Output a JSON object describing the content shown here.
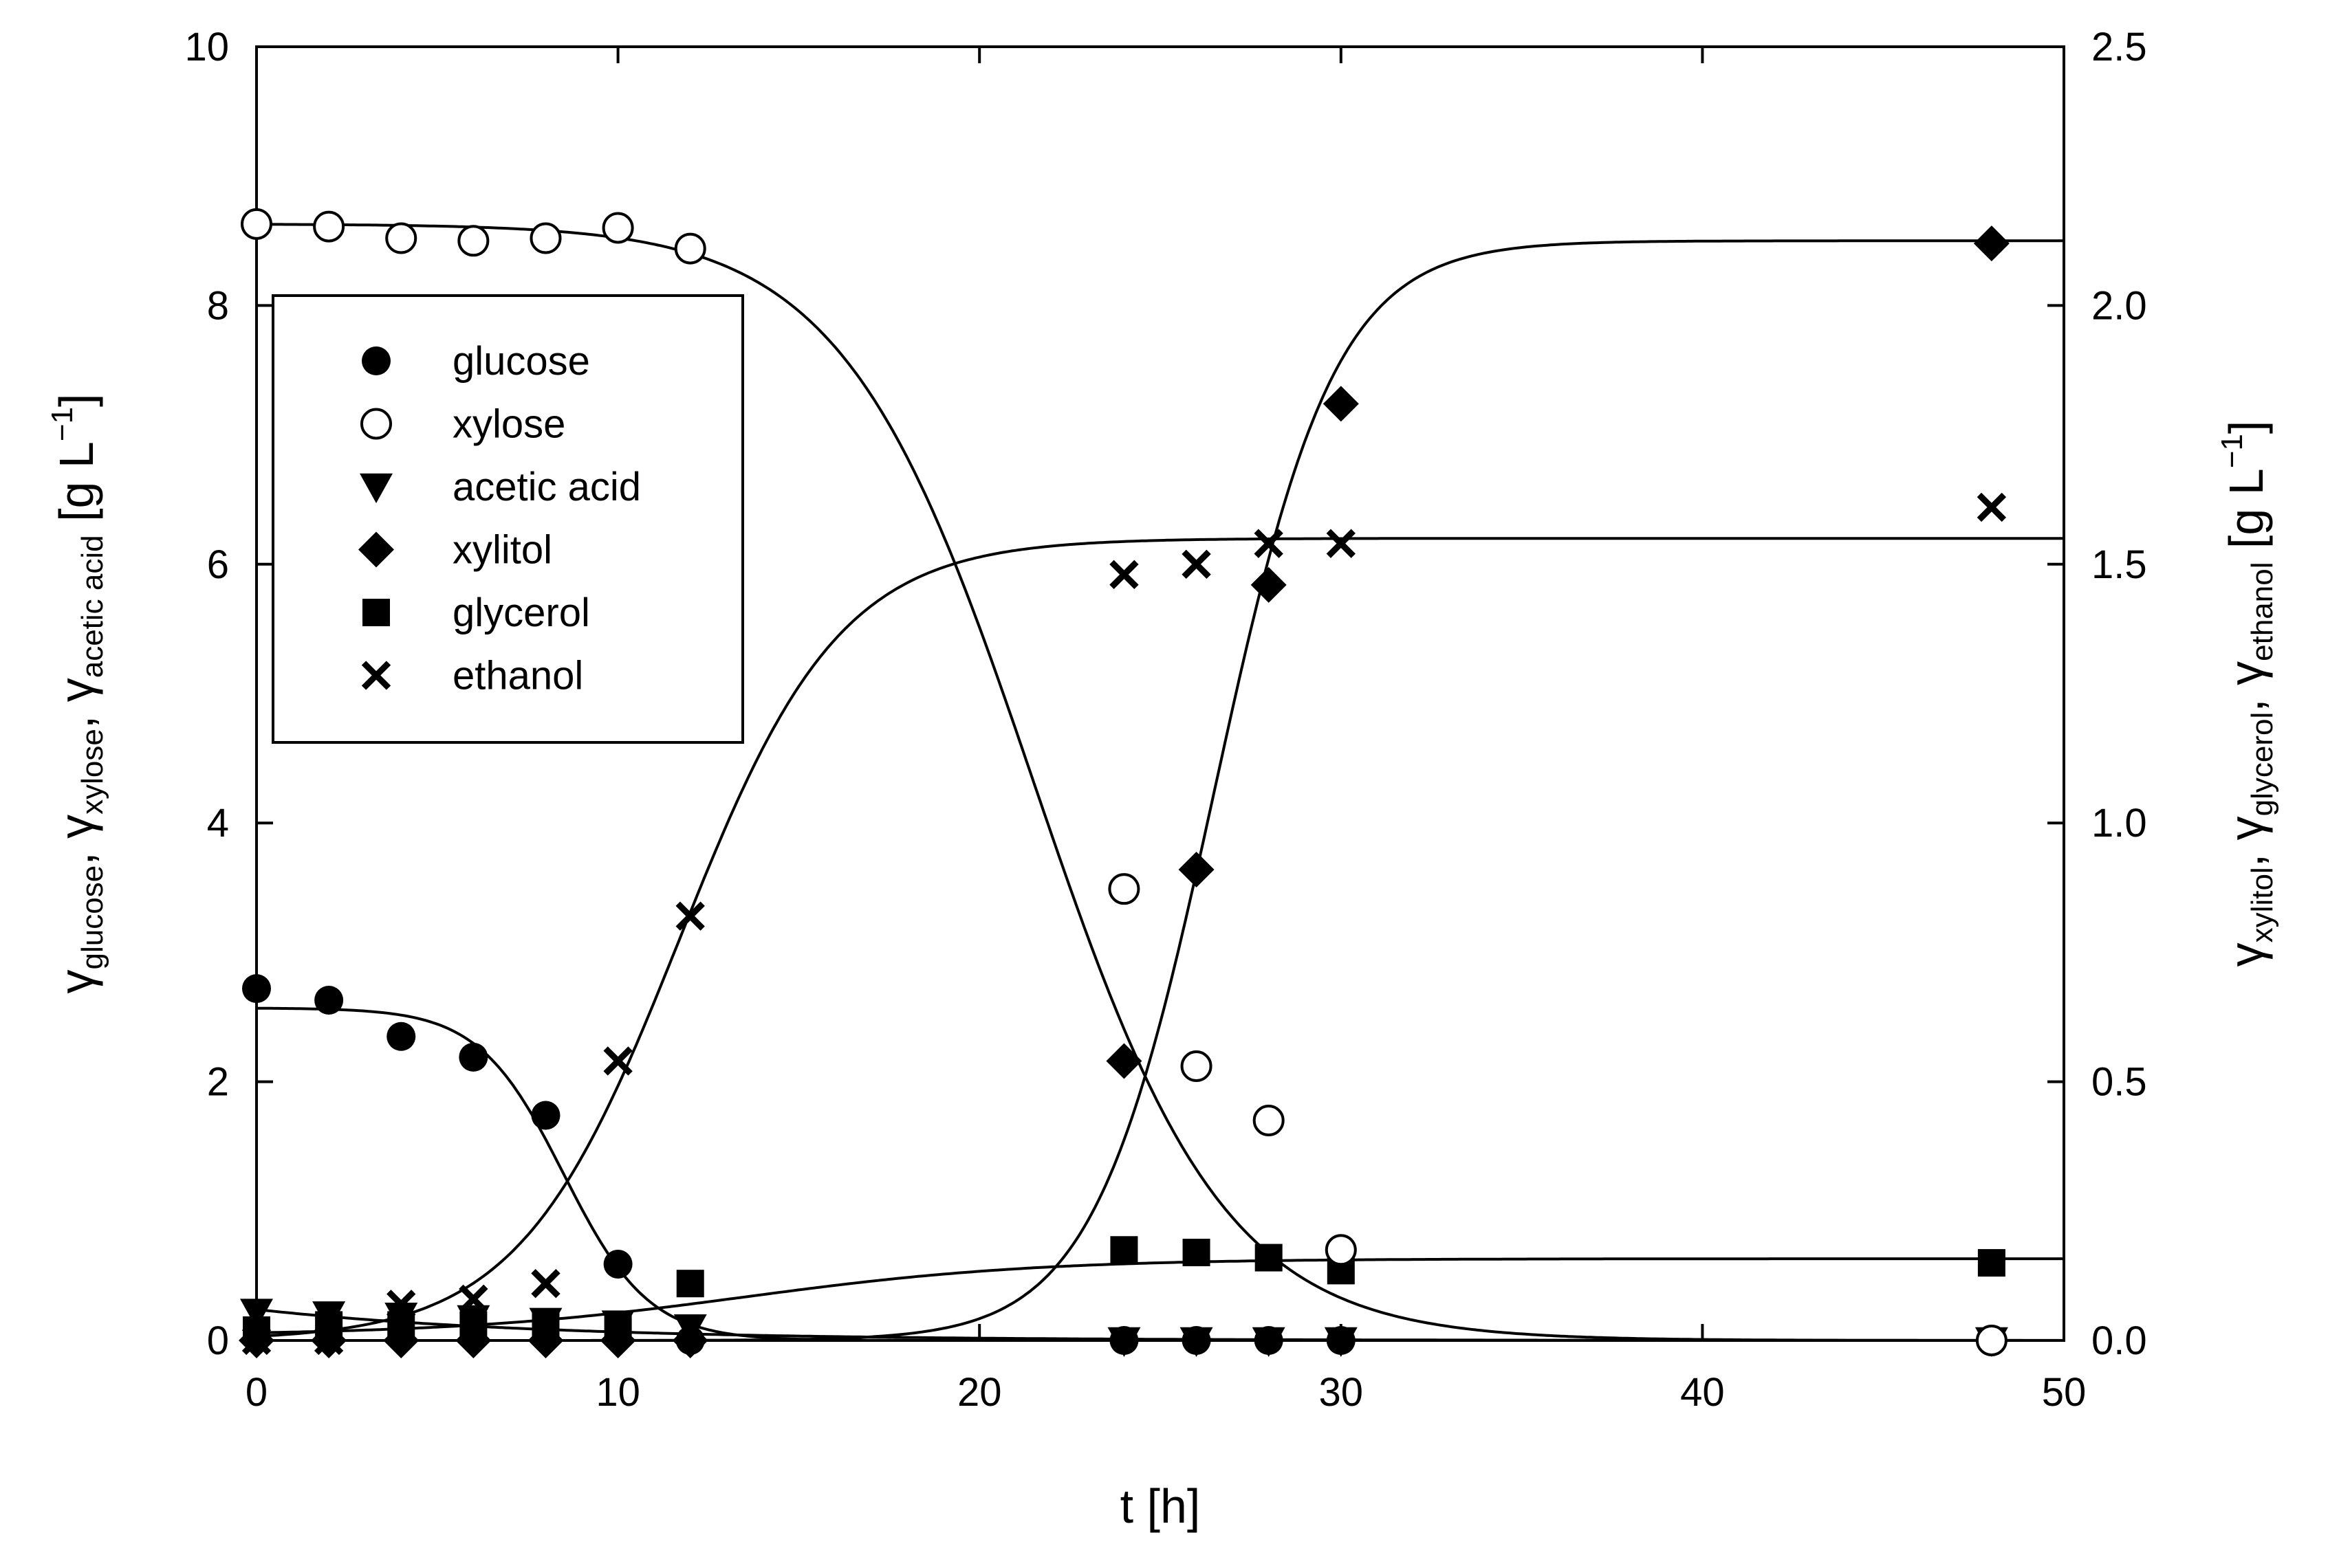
{
  "chart_data": {
    "type": "scatter",
    "xlabel": "t [h]",
    "ylabel_left": {
      "symbol": "γ",
      "subs": [
        "glucose",
        "xylose",
        "acetic acid"
      ],
      "unit": "[g L",
      "exp": "−1",
      "close": "]"
    },
    "ylabel_right": {
      "symbol": "γ",
      "subs": [
        "xylitol",
        "glycerol",
        "ethanol"
      ],
      "unit": "[g L",
      "exp": "−1",
      "close": "]"
    },
    "xlim": [
      0,
      50
    ],
    "ylim_left": [
      0,
      10
    ],
    "ylim_right": [
      0,
      2.5
    ],
    "x_ticks": [
      "0",
      "10",
      "20",
      "30",
      "40",
      "50"
    ],
    "y_left_ticks": [
      "0",
      "2",
      "4",
      "6",
      "8",
      "10"
    ],
    "y_right_ticks": [
      "0.0",
      "0.5",
      "1.0",
      "1.5",
      "2.0",
      "2.5"
    ],
    "grid": false,
    "legend_position": "top-left",
    "series": [
      {
        "name": "glucose",
        "marker": "filled-circle",
        "axis": "left",
        "x": [
          0,
          2,
          4,
          6,
          8,
          10,
          12,
          24,
          26,
          28,
          30,
          48
        ],
        "y": [
          2.72,
          2.63,
          2.35,
          2.19,
          1.74,
          0.59,
          0.0,
          0.0,
          0.0,
          0.0,
          0.0,
          0.0
        ]
      },
      {
        "name": "xylose",
        "marker": "open-circle",
        "axis": "left",
        "x": [
          0,
          2,
          4,
          6,
          8,
          10,
          12,
          24,
          26,
          28,
          30,
          48
        ],
        "y": [
          8.63,
          8.61,
          8.52,
          8.5,
          8.52,
          8.6,
          8.44,
          3.49,
          2.12,
          1.7,
          0.7,
          0.0
        ]
      },
      {
        "name": "acetic acid",
        "marker": "filled-triangle-down",
        "axis": "left",
        "x": [
          0,
          2,
          4,
          6,
          8,
          10,
          12,
          24,
          26,
          28,
          30,
          48
        ],
        "y": [
          0.22,
          0.2,
          0.19,
          0.17,
          0.15,
          0.13,
          0.1,
          0.0,
          0.0,
          0.0,
          0.0,
          0.0
        ]
      },
      {
        "name": "xylitol",
        "marker": "filled-diamond",
        "axis": "right",
        "x": [
          0,
          2,
          4,
          6,
          8,
          10,
          12,
          24,
          26,
          28,
          30,
          48
        ],
        "y": [
          0.0,
          0.0,
          0.0,
          0.0,
          0.0,
          0.0,
          0.0,
          0.54,
          0.91,
          1.46,
          1.81,
          2.12
        ]
      },
      {
        "name": "glycerol",
        "marker": "filled-square",
        "axis": "right",
        "x": [
          0,
          2,
          4,
          6,
          8,
          10,
          12,
          24,
          26,
          28,
          30,
          48
        ],
        "y": [
          0.02,
          0.03,
          0.03,
          0.03,
          0.03,
          0.03,
          0.11,
          0.175,
          0.17,
          0.16,
          0.135,
          0.15
        ]
      },
      {
        "name": "ethanol",
        "marker": "x-cross",
        "axis": "right",
        "x": [
          0,
          2,
          4,
          6,
          8,
          10,
          12,
          24,
          26,
          28,
          30,
          48
        ],
        "y": [
          0.0,
          0.0,
          0.07,
          0.08,
          0.11,
          0.54,
          0.82,
          1.48,
          1.5,
          1.54,
          1.54,
          1.61
        ]
      }
    ],
    "fit_curves": [
      {
        "name": "glucose-fit",
        "axis": "left",
        "type": "decay",
        "y0": 2.57,
        "t50": 8.5,
        "k": 0.85
      },
      {
        "name": "xylose-fit",
        "axis": "left",
        "type": "decay",
        "y0": 8.63,
        "t50": 21.5,
        "k": 0.38
      },
      {
        "name": "acetic-acid-fit",
        "axis": "left",
        "type": "exp-decay",
        "y0": 0.24,
        "rate": 0.13
      },
      {
        "name": "xylitol-fit",
        "axis": "right",
        "type": "growth",
        "ymax": 2.125,
        "t50": 26.5,
        "k": 0.6
      },
      {
        "name": "ethanol-fit",
        "axis": "right",
        "type": "growth",
        "ymax": 1.55,
        "t50": 11.7,
        "k": 0.45
      },
      {
        "name": "glycerol-fit",
        "axis": "right",
        "type": "growth-offset",
        "y0": 0.01,
        "ymax": 0.158,
        "t50": 13.5,
        "k": 0.25
      }
    ]
  }
}
